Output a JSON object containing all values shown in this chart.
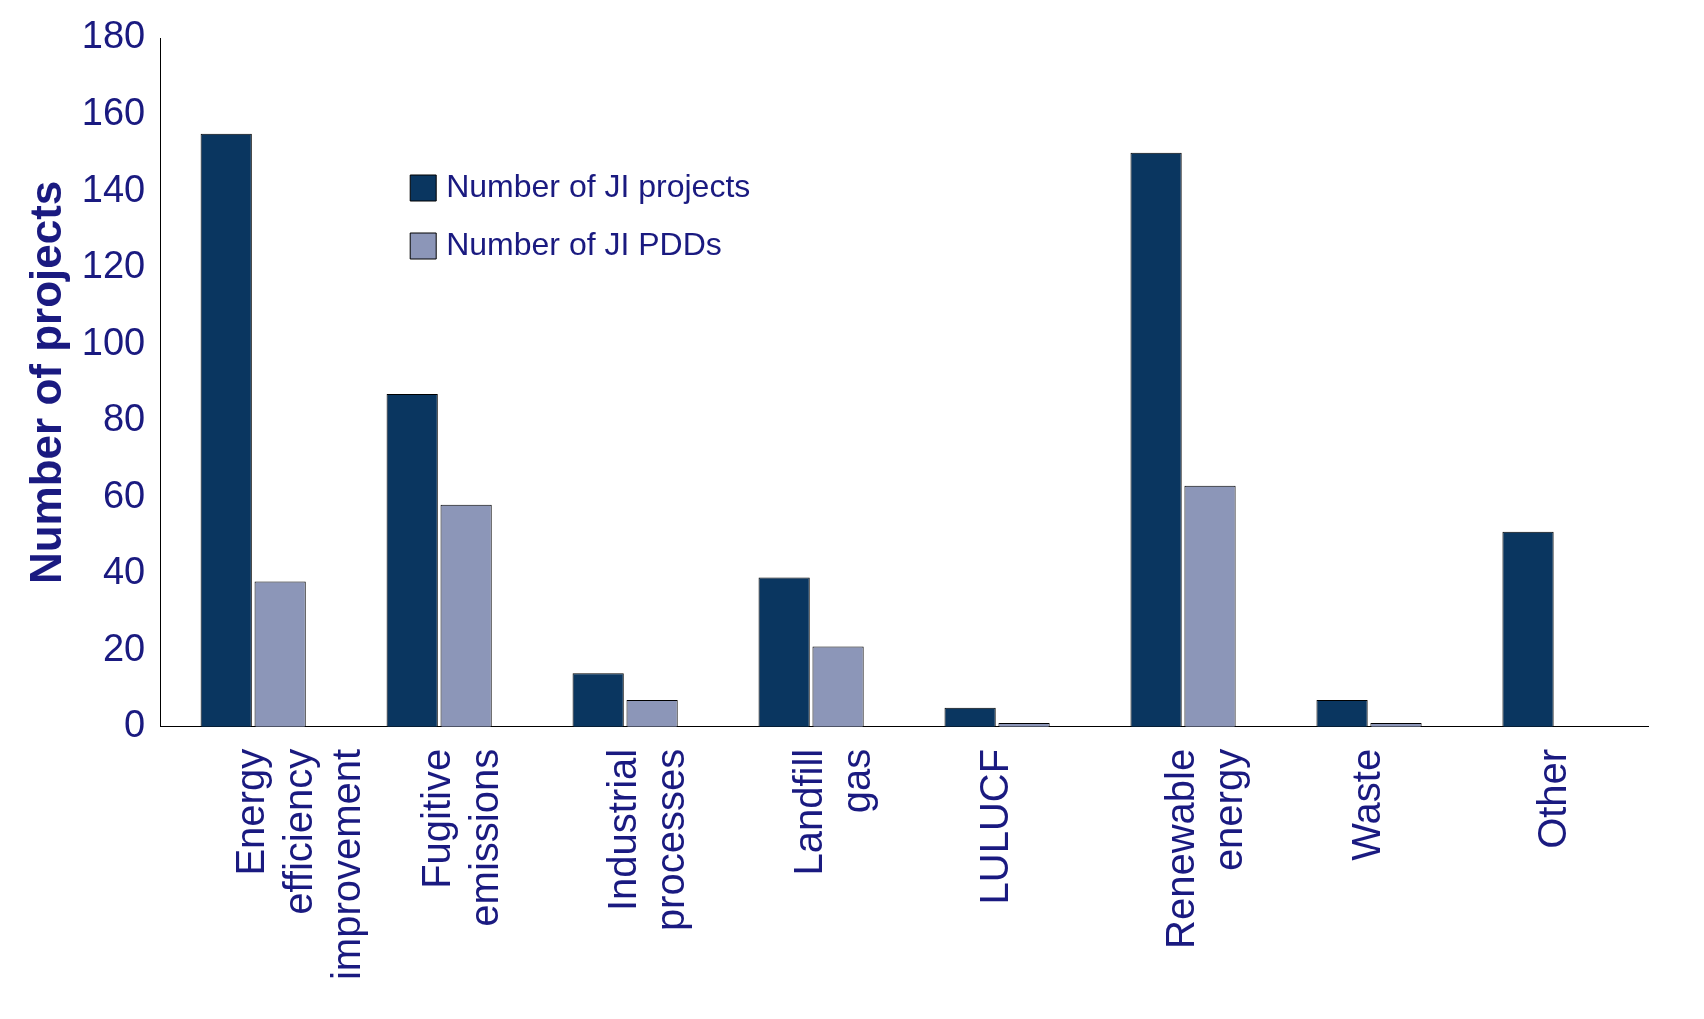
{
  "chart_data": {
    "type": "bar",
    "ylabel": "Number of projects",
    "categories": [
      "Energy efficiency improvement",
      "Fugitive emissions",
      "Industrial processes",
      "Landfill gas",
      "LULUCF",
      "Renewable energy",
      "Waste",
      "Other"
    ],
    "series": [
      {
        "name": "Number of JI projects",
        "color": "#0a3660",
        "values": [
          155,
          87,
          14,
          39,
          5,
          150,
          7,
          51
        ]
      },
      {
        "name": "Number of JI PDDs",
        "color": "#8c96b8",
        "values": [
          38,
          58,
          7,
          21,
          1,
          63,
          1,
          null
        ]
      }
    ],
    "ylim": [
      0,
      180
    ],
    "yticks": [
      0,
      20,
      40,
      60,
      80,
      100,
      120,
      140,
      160,
      180
    ],
    "grid": false,
    "legend": "top left"
  }
}
